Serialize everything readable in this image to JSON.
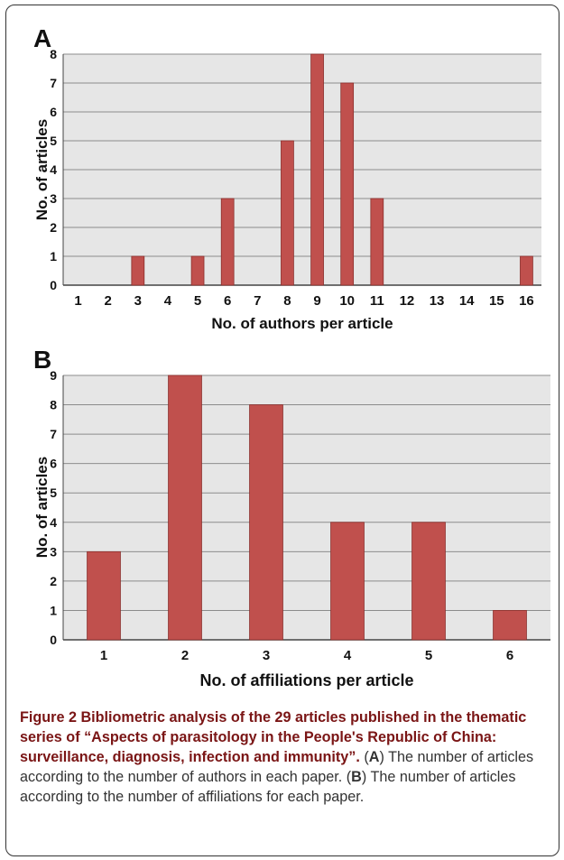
{
  "chart_data": [
    {
      "panel_label": "A",
      "type": "bar",
      "categories": [
        "1",
        "2",
        "3",
        "4",
        "5",
        "6",
        "7",
        "8",
        "9",
        "10",
        "11",
        "12",
        "13",
        "14",
        "15",
        "16"
      ],
      "values": [
        0,
        0,
        1,
        0,
        1,
        3,
        0,
        5,
        8,
        7,
        3,
        0,
        0,
        0,
        0,
        1
      ],
      "xlabel": "No. of authors per article",
      "ylabel": "No. of articles",
      "ylim": [
        0,
        8
      ],
      "yticks": [
        "0",
        "1",
        "2",
        "3",
        "4",
        "5",
        "6",
        "7",
        "8"
      ],
      "grid": true,
      "bar_color": "#c0504d"
    },
    {
      "panel_label": "B",
      "type": "bar",
      "categories": [
        "1",
        "2",
        "3",
        "4",
        "5",
        "6"
      ],
      "values": [
        3,
        9,
        8,
        4,
        4,
        1
      ],
      "xlabel": "No. of affiliations per article",
      "ylabel": "No. of articles",
      "ylim": [
        0,
        9
      ],
      "yticks": [
        "0",
        "1",
        "2",
        "3",
        "4",
        "5",
        "6",
        "7",
        "8",
        "9"
      ],
      "grid": true,
      "bar_color": "#c0504d"
    }
  ],
  "caption": {
    "bold_text": "Figure 2 Bibliometric analysis of the 29 articles published in the thematic series of “Aspects of parasitology in the People's Republic of China: surveillance, diagnosis, infection and immunity”.",
    "part1_open": " (",
    "part1_letter": "A",
    "part1_text": ") The number of articles according to the number of authors in each paper. (",
    "part2_letter": "B",
    "part2_text": ") The number of articles according to the number of affiliations for each paper."
  }
}
